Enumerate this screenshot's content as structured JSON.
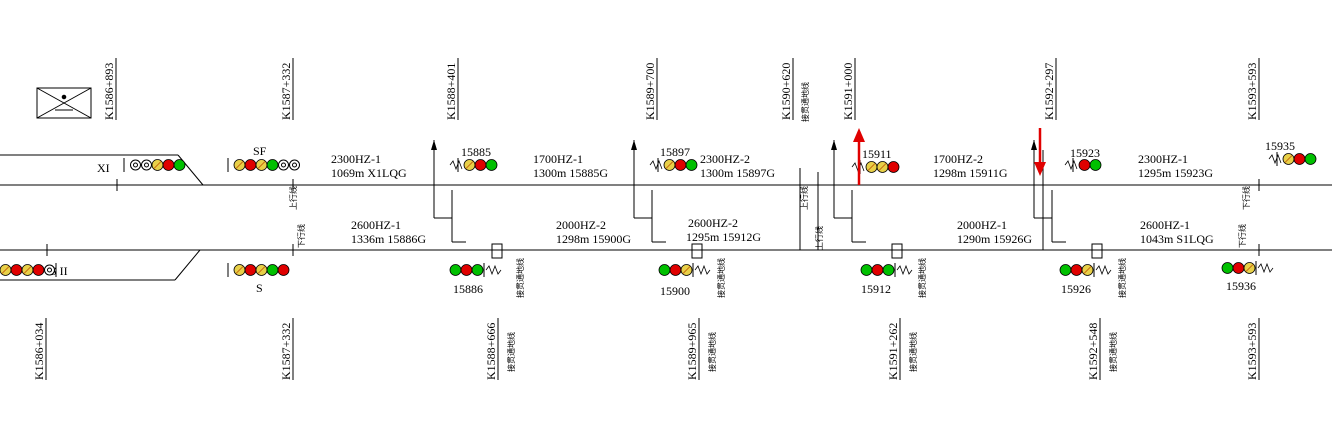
{
  "colors": {
    "line": "#000000",
    "red_lamp": "#e00000",
    "green_lamp": "#00c000",
    "yellow_lamp": "#e8d048",
    "direction_arrow": "#e00000"
  },
  "legend_icon": "envelope-icon",
  "stations": {
    "left_up_signal": "XI",
    "left_down_signal": "S II",
    "sf_signal": "SF",
    "s_signal": "S"
  },
  "top_kilometer_markers": [
    "K1586+893",
    "K1587+332",
    "K1588+401",
    "K1589+700",
    "K1590+620",
    "K1591+000",
    "K1592+297",
    "K1593+593"
  ],
  "bottom_kilometer_markers": [
    "K1586+034",
    "K1587+332",
    "K1588+666",
    "K1589+965",
    "K1591+262",
    "K1592+548",
    "K1593+593"
  ],
  "up_signal_ids": [
    "15885",
    "15897",
    "15911",
    "15923",
    "15935"
  ],
  "down_signal_ids": [
    "15886",
    "15900",
    "15912",
    "15926",
    "15936"
  ],
  "up_track_sections": [
    {
      "freq": "2300HZ-1",
      "detail": "1069m  X1LQG"
    },
    {
      "freq": "1700HZ-1",
      "detail": "1300m  15885G"
    },
    {
      "freq": "2300HZ-2",
      "detail": "1300m  15897G"
    },
    {
      "freq": "1700HZ-2",
      "detail": "1298m  15911G"
    },
    {
      "freq": "2300HZ-1",
      "detail": "1295m  15923G"
    }
  ],
  "down_track_sections": [
    {
      "freq": "2600HZ-1",
      "detail": "1336m  15886G"
    },
    {
      "freq": "2000HZ-2",
      "detail": "1298m  15900G"
    },
    {
      "freq": "2600HZ-2",
      "detail": "1295m  15912G"
    },
    {
      "freq": "2000HZ-1",
      "detail": "1290m  15926G"
    },
    {
      "freq": "2600HZ-1",
      "detail": "1043m  S1LQG"
    }
  ],
  "vertical_notes": {
    "up_line": "上行线",
    "down_line": "下行线",
    "grounding": "接贯通地线"
  }
}
